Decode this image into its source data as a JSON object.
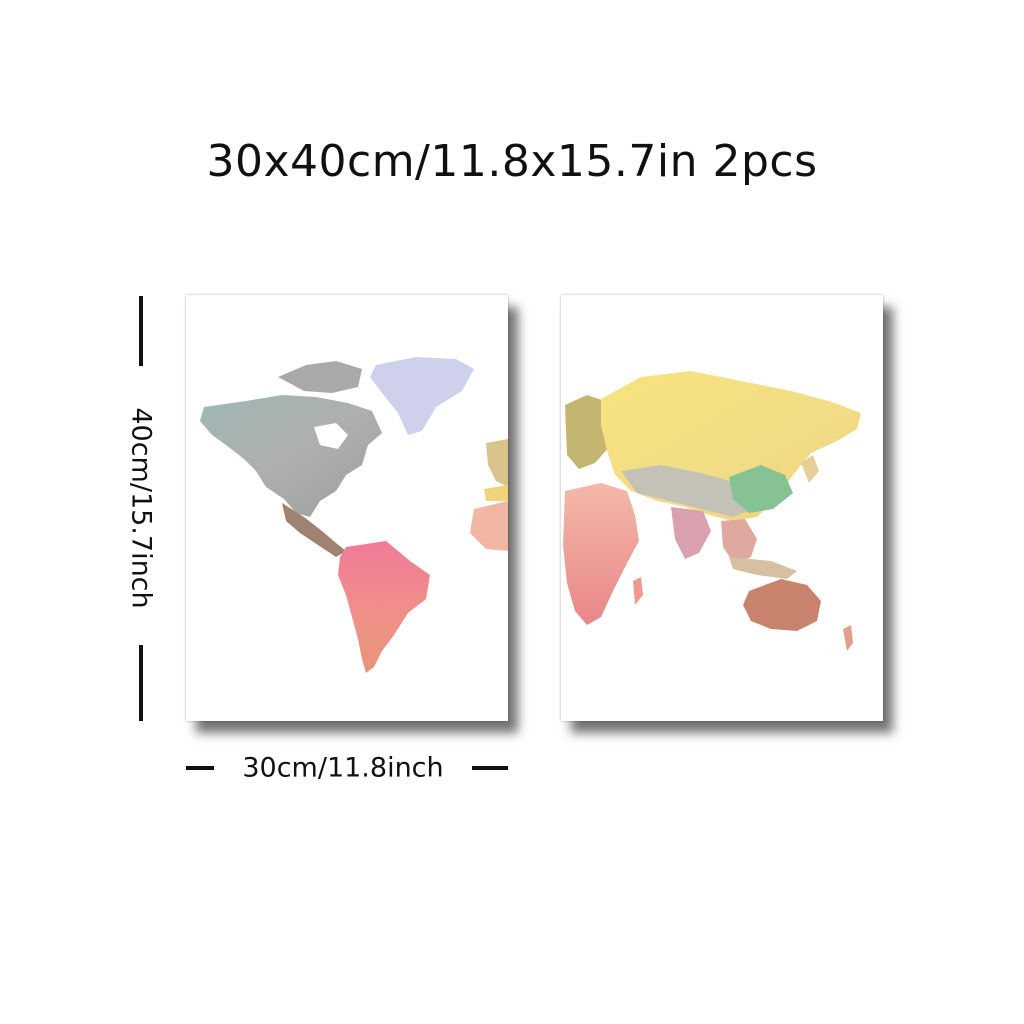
{
  "headline": "30x40cm/11.8x15.7in 2pcs",
  "dimensions": {
    "height_label": "40cm/15.7inch",
    "width_label": "30cm/11.8inch"
  },
  "colors": {
    "background": "#ffffff",
    "text": "#111111",
    "continent_gray": "#a5a7a4",
    "continent_blue": "#c9cdea",
    "continent_pink": "#f08aa0",
    "continent_salmon": "#ec9a82",
    "continent_yellow": "#f4e07a",
    "continent_green": "#86c293",
    "continent_brown": "#c9826b"
  }
}
